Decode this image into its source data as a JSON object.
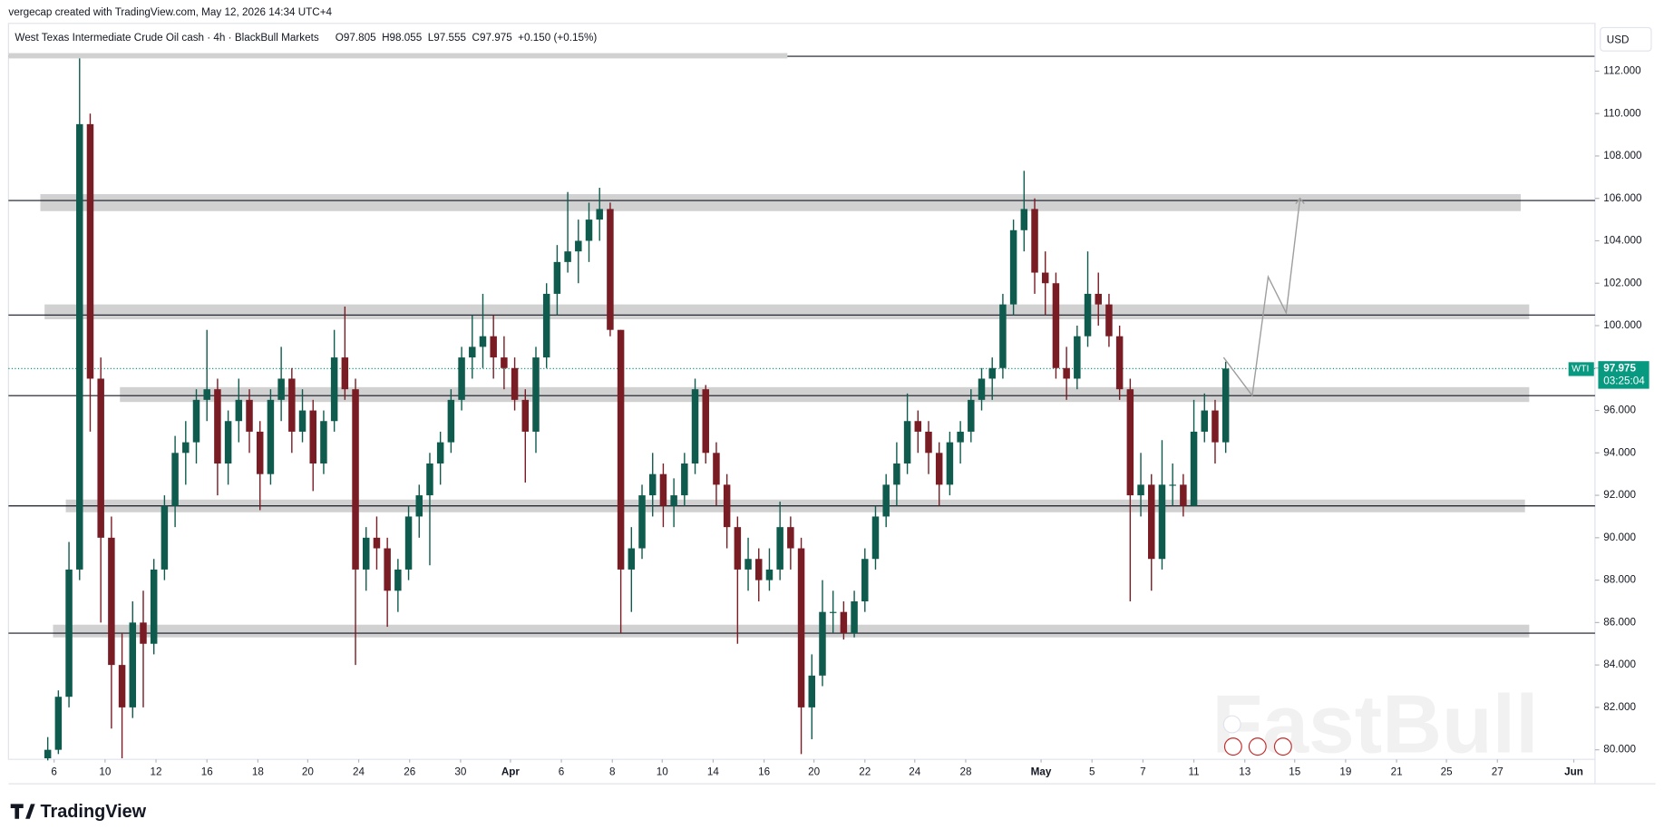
{
  "chart_data": {
    "type": "candlestick",
    "attribution": "vergecap created with TradingView.com, May 12, 2026 14:34 UTC+4",
    "title": "West Texas Intermediate Crude Oil cash · 4h · BlackBull Markets",
    "ohlc_text": "O97.805  H98.055  L97.555  C97.975  +0.150 (+0.15%)",
    "currency": "USD",
    "symbol_tag": "WTI",
    "last_price": 97.975,
    "countdown": "03:25:04",
    "brand": "TradingView",
    "watermark": "FastBull",
    "up_color": "#0f5c4e",
    "down_color": "#7a1c24",
    "ylim": [
      79.55,
      112.7
    ],
    "yticks": [
      {
        "value": 80,
        "label": "80.000"
      },
      {
        "value": 82,
        "label": "82.000"
      },
      {
        "value": 84,
        "label": "84.000"
      },
      {
        "value": 86,
        "label": "86.000"
      },
      {
        "value": 88,
        "label": "88.000"
      },
      {
        "value": 90,
        "label": "90.000"
      },
      {
        "value": 92,
        "label": "92.000"
      },
      {
        "value": 94,
        "label": "94.000"
      },
      {
        "value": 96,
        "label": "96.000"
      },
      {
        "value": 98,
        "label": "98.000"
      },
      {
        "value": 100,
        "label": "100.000"
      },
      {
        "value": 102,
        "label": "102.000"
      },
      {
        "value": 104,
        "label": "104.000"
      },
      {
        "value": 106,
        "label": "106.000"
      },
      {
        "value": 108,
        "label": "108.000"
      },
      {
        "value": 110,
        "label": "110.000"
      },
      {
        "value": 112,
        "label": "112.000"
      }
    ],
    "xlim": [
      -3.7,
      145.8
    ],
    "xticks": [
      {
        "value": 0.6,
        "label": "6"
      },
      {
        "value": 5.4,
        "label": "10"
      },
      {
        "value": 10.2,
        "label": "12"
      },
      {
        "value": 15,
        "label": "16"
      },
      {
        "value": 19.8,
        "label": "18"
      },
      {
        "value": 24.5,
        "label": "20"
      },
      {
        "value": 29.3,
        "label": "24"
      },
      {
        "value": 34.1,
        "label": "26"
      },
      {
        "value": 38.9,
        "label": "30"
      },
      {
        "value": 43.6,
        "label": "Apr"
      },
      {
        "value": 48.4,
        "label": "6"
      },
      {
        "value": 53.2,
        "label": "8"
      },
      {
        "value": 57.9,
        "label": "10"
      },
      {
        "value": 62.7,
        "label": "14"
      },
      {
        "value": 67.5,
        "label": "16"
      },
      {
        "value": 72.2,
        "label": "20"
      },
      {
        "value": 77,
        "label": "22"
      },
      {
        "value": 81.7,
        "label": "24"
      },
      {
        "value": 86.5,
        "label": "28"
      },
      {
        "value": 93.6,
        "label": "May"
      },
      {
        "value": 98.4,
        "label": "5"
      },
      {
        "value": 103.2,
        "label": "7"
      },
      {
        "value": 108,
        "label": "11"
      },
      {
        "value": 112.8,
        "label": "13"
      },
      {
        "value": 117.5,
        "label": "15"
      },
      {
        "value": 122.3,
        "label": "19"
      },
      {
        "value": 127.1,
        "label": "21"
      },
      {
        "value": 131.8,
        "label": "25"
      },
      {
        "value": 136.6,
        "label": "27"
      },
      {
        "value": 143.8,
        "label": "Jun"
      }
    ],
    "candles": [
      [
        79.6,
        80.6,
        79.5,
        80.0
      ],
      [
        80.0,
        82.8,
        79.8,
        82.5
      ],
      [
        82.5,
        89.8,
        82.0,
        88.5
      ],
      [
        88.5,
        112.6,
        88.0,
        109.5
      ],
      [
        109.5,
        110.0,
        95.0,
        97.5
      ],
      [
        97.5,
        98.5,
        86.0,
        90.0
      ],
      [
        90.0,
        91.0,
        81.0,
        84.0
      ],
      [
        84.0,
        85.5,
        79.6,
        82.0
      ],
      [
        82.0,
        87.0,
        81.5,
        86.0
      ],
      [
        86.0,
        87.5,
        82.0,
        85.0
      ],
      [
        85.0,
        89.0,
        84.5,
        88.5
      ],
      [
        88.5,
        92.0,
        88.0,
        91.5
      ],
      [
        91.5,
        94.8,
        90.5,
        94.0
      ],
      [
        94.0,
        95.5,
        92.5,
        94.5
      ],
      [
        94.5,
        97.0,
        93.5,
        96.5
      ],
      [
        96.5,
        99.8,
        95.5,
        97.0
      ],
      [
        97.0,
        97.5,
        92.0,
        93.5
      ],
      [
        93.5,
        96.0,
        92.5,
        95.5
      ],
      [
        95.5,
        97.5,
        94.5,
        96.5
      ],
      [
        96.5,
        97.0,
        94.0,
        95.0
      ],
      [
        95.0,
        95.5,
        91.3,
        93.0
      ],
      [
        93.0,
        97.0,
        92.5,
        96.5
      ],
      [
        96.5,
        99.0,
        95.5,
        97.5
      ],
      [
        97.5,
        98.0,
        94.0,
        95.0
      ],
      [
        95.0,
        97.0,
        94.5,
        96.0
      ],
      [
        96.0,
        96.5,
        92.2,
        93.5
      ],
      [
        93.5,
        96.0,
        93.0,
        95.5
      ],
      [
        95.5,
        99.8,
        95.0,
        98.5
      ],
      [
        98.5,
        100.9,
        96.5,
        97.0
      ],
      [
        97.0,
        97.5,
        84.0,
        88.5
      ],
      [
        88.5,
        90.5,
        87.5,
        90.0
      ],
      [
        90.0,
        91.0,
        88.5,
        89.5
      ],
      [
        89.5,
        90.0,
        85.8,
        87.5
      ],
      [
        87.5,
        89.0,
        86.5,
        88.5
      ],
      [
        88.5,
        91.5,
        88.0,
        91.0
      ],
      [
        91.0,
        92.5,
        90.0,
        92.0
      ],
      [
        92.0,
        94.0,
        88.7,
        93.5
      ],
      [
        93.5,
        95.0,
        92.5,
        94.5
      ],
      [
        94.5,
        97.0,
        94.0,
        96.5
      ],
      [
        96.5,
        99.0,
        96.0,
        98.5
      ],
      [
        98.5,
        100.5,
        97.5,
        99.0
      ],
      [
        99.0,
        101.5,
        98.0,
        99.5
      ],
      [
        99.5,
        100.5,
        97.5,
        98.5
      ],
      [
        98.5,
        99.5,
        97.0,
        98.0
      ],
      [
        98.0,
        98.5,
        96.0,
        96.5
      ],
      [
        96.5,
        97.0,
        92.6,
        95.0
      ],
      [
        95.0,
        99.0,
        94.0,
        98.5
      ],
      [
        98.5,
        102.0,
        98.0,
        101.5
      ],
      [
        101.5,
        103.8,
        100.5,
        103.0
      ],
      [
        103.0,
        106.3,
        102.5,
        103.5
      ],
      [
        103.5,
        105.0,
        102.0,
        104.0
      ],
      [
        104.0,
        105.8,
        103.0,
        105.0
      ],
      [
        105.0,
        106.5,
        104.0,
        105.5
      ],
      [
        105.5,
        105.8,
        99.5,
        99.8
      ],
      [
        99.8,
        99.8,
        85.5,
        88.5
      ],
      [
        88.5,
        90.5,
        86.5,
        89.5
      ],
      [
        89.5,
        92.5,
        89.0,
        92.0
      ],
      [
        92.0,
        94.0,
        91.0,
        93.0
      ],
      [
        93.0,
        93.5,
        90.5,
        91.5
      ],
      [
        91.5,
        92.8,
        90.5,
        92.0
      ],
      [
        92.0,
        94.0,
        91.5,
        93.5
      ],
      [
        93.5,
        97.5,
        93.0,
        97.0
      ],
      [
        97.0,
        97.2,
        93.5,
        94.0
      ],
      [
        94.0,
        94.5,
        91.5,
        92.5
      ],
      [
        92.5,
        93.0,
        89.5,
        90.5
      ],
      [
        90.5,
        91.0,
        85.0,
        88.5
      ],
      [
        88.5,
        90.0,
        87.5,
        89.0
      ],
      [
        89.0,
        89.5,
        87.0,
        88.0
      ],
      [
        88.0,
        89.5,
        87.5,
        88.5
      ],
      [
        88.5,
        91.7,
        88.0,
        90.5
      ],
      [
        90.5,
        91.0,
        88.5,
        89.5
      ],
      [
        89.5,
        90.0,
        79.8,
        82.0
      ],
      [
        82.0,
        84.5,
        80.5,
        83.5
      ],
      [
        83.5,
        88.0,
        83.0,
        86.5
      ],
      [
        86.5,
        87.5,
        85.5,
        86.5
      ],
      [
        86.5,
        87.0,
        85.2,
        85.5
      ],
      [
        85.5,
        87.5,
        85.3,
        87.0
      ],
      [
        87.0,
        89.5,
        86.5,
        89.0
      ],
      [
        89.0,
        91.5,
        88.5,
        91.0
      ],
      [
        91.0,
        93.0,
        90.5,
        92.5
      ],
      [
        92.5,
        94.5,
        91.5,
        93.5
      ],
      [
        93.5,
        96.8,
        93.0,
        95.5
      ],
      [
        95.5,
        96.0,
        94.0,
        95.0
      ],
      [
        95.0,
        95.5,
        93.0,
        94.0
      ],
      [
        94.0,
        94.5,
        91.5,
        92.5
      ],
      [
        92.5,
        95.0,
        92.0,
        94.5
      ],
      [
        94.5,
        95.5,
        93.5,
        95.0
      ],
      [
        95.0,
        97.0,
        94.5,
        96.5
      ],
      [
        96.5,
        98.0,
        96.0,
        97.5
      ],
      [
        97.5,
        98.5,
        96.5,
        98.0
      ],
      [
        98.0,
        101.5,
        97.5,
        101.0
      ],
      [
        101.0,
        105.0,
        100.5,
        104.5
      ],
      [
        104.5,
        107.3,
        103.5,
        105.5
      ],
      [
        105.5,
        106.0,
        101.5,
        102.5
      ],
      [
        102.5,
        103.5,
        100.5,
        102.0
      ],
      [
        102.0,
        102.5,
        97.5,
        98.0
      ],
      [
        98.0,
        99.0,
        96.5,
        97.5
      ],
      [
        97.5,
        100.0,
        97.0,
        99.5
      ],
      [
        99.5,
        103.5,
        99.0,
        101.5
      ],
      [
        101.5,
        102.5,
        100.0,
        101.0
      ],
      [
        101.0,
        101.5,
        99.0,
        99.5
      ],
      [
        99.5,
        100.0,
        96.5,
        97.0
      ],
      [
        97.0,
        97.5,
        87.0,
        92.0
      ],
      [
        92.0,
        94.0,
        91.0,
        92.5
      ],
      [
        92.5,
        93.0,
        87.5,
        89.0
      ],
      [
        89.0,
        94.6,
        88.5,
        92.5
      ],
      [
        92.5,
        93.5,
        91.5,
        92.5
      ],
      [
        92.5,
        93.0,
        91.0,
        91.5
      ],
      [
        91.5,
        96.5,
        91.5,
        95.0
      ],
      [
        95.0,
        96.8,
        94.5,
        96.0
      ],
      [
        96.0,
        96.5,
        93.5,
        94.5
      ],
      [
        94.5,
        98.3,
        94.0,
        97.975
      ]
    ],
    "zones": [
      {
        "low": 105.4,
        "high": 106.2,
        "x0": -0.7,
        "x1": 138.8
      },
      {
        "low": 100.3,
        "high": 101.0,
        "x0": -0.3,
        "x1": 139.6
      },
      {
        "low": 96.4,
        "high": 97.1,
        "x0": 6.8,
        "x1": 139.6
      },
      {
        "low": 91.2,
        "high": 91.8,
        "x0": 1.7,
        "x1": 139.2
      },
      {
        "low": 85.3,
        "high": 85.9,
        "x0": 0.5,
        "x1": 139.6
      }
    ],
    "levels": [
      105.9,
      100.5,
      96.7,
      91.5,
      85.5
    ],
    "projection": {
      "x": [
        110.8,
        113.5,
        115,
        116.7,
        118
      ],
      "y": [
        98.5,
        96.7,
        102.3,
        100.6,
        106
      ]
    },
    "zone_color": "#d1d1d1",
    "projection_color": "#9e9e9e",
    "price_color": "#089981"
  }
}
